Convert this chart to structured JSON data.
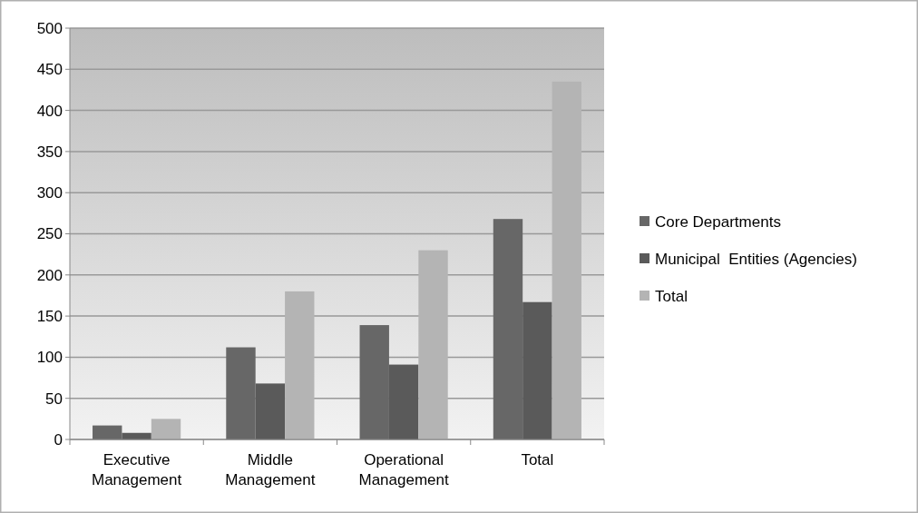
{
  "chart_data": {
    "type": "bar",
    "categories": [
      "Executive Management",
      "Middle Management",
      "Operational Management",
      "Total"
    ],
    "series": [
      {
        "name": "Core Departments",
        "color": "#676767",
        "values": [
          17,
          112,
          139,
          268
        ]
      },
      {
        "name": "Municipal  Entities (Agencies)",
        "color": "#5a5a5a",
        "values": [
          8,
          68,
          91,
          167
        ]
      },
      {
        "name": "Total",
        "color": "#b4b4b4",
        "values": [
          25,
          180,
          230,
          435
        ]
      }
    ],
    "ylim": [
      0,
      500
    ],
    "yticks": [
      0,
      50,
      100,
      150,
      200,
      250,
      300,
      350,
      400,
      450,
      500
    ],
    "grid": "y",
    "legend": "right"
  }
}
